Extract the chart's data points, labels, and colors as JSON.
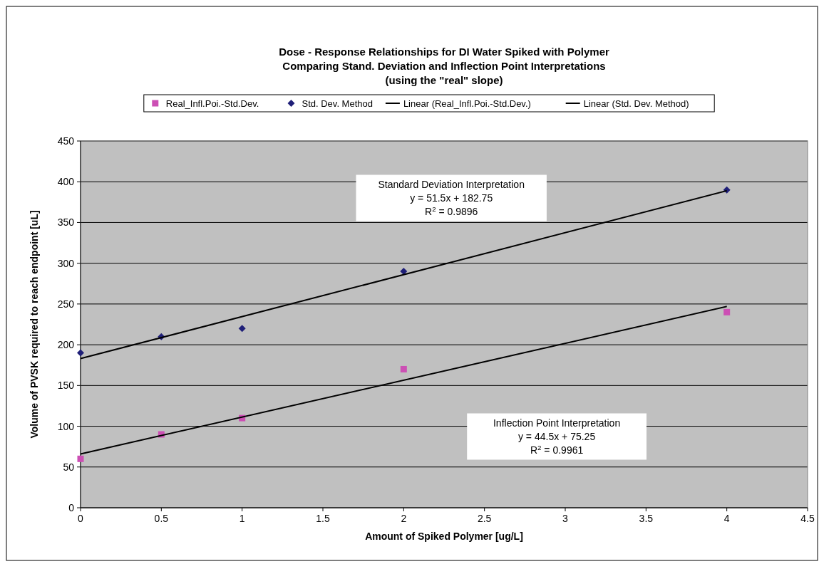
{
  "chart_data": {
    "type": "scatter",
    "title": "Dose - Response Relationships for DI Water Spiked with Polymer\nComparing Stand. Deviation and Inflection Point Interpretations\n(using the \"real\" slope)",
    "xlabel": "Amount of Spiked Polymer [ug/L]",
    "ylabel": "Volume of PVSK required to reach endpoint [uL]",
    "xlim": [
      0,
      4.5
    ],
    "xticks": [
      0,
      0.5,
      1,
      1.5,
      2,
      2.5,
      3,
      3.5,
      4,
      4.5
    ],
    "ylim": [
      0,
      450
    ],
    "yticks": [
      0,
      50,
      100,
      150,
      200,
      250,
      300,
      350,
      400,
      450
    ],
    "grid": "y",
    "legend": "top",
    "series": [
      {
        "name": "Real_Infl.Poi.-Std.Dev.",
        "marker": "square",
        "color": "#cc4fb4",
        "x": [
          0,
          0.5,
          1,
          2,
          4
        ],
        "values": [
          60,
          90,
          110,
          170,
          240
        ]
      },
      {
        "name": "Std. Dev. Method",
        "marker": "diamond",
        "color": "#1f1f78",
        "x": [
          0,
          0.5,
          1,
          2,
          4
        ],
        "values": [
          190,
          210,
          220,
          290,
          390
        ]
      },
      {
        "name": "Linear (Real_Infl.Poi.-Std.Dev.)",
        "type": "line",
        "marker": "none",
        "color": "#000000",
        "x": [
          0,
          4
        ],
        "values": [
          66,
          247
        ]
      },
      {
        "name": "Linear (Std. Dev. Method)",
        "type": "line",
        "marker": "none",
        "color": "#000000",
        "x": [
          0,
          4
        ],
        "values": [
          183,
          389
        ]
      }
    ],
    "annotations": [
      "Standard Deviation Interpretation\ny = 51.5x + 182.75\nR$^{2}$ = 0.9896",
      "Inflection Point Interpretation\ny = 44.5x + 75.25\nR$^{2}$ = 0.9961"
    ]
  }
}
